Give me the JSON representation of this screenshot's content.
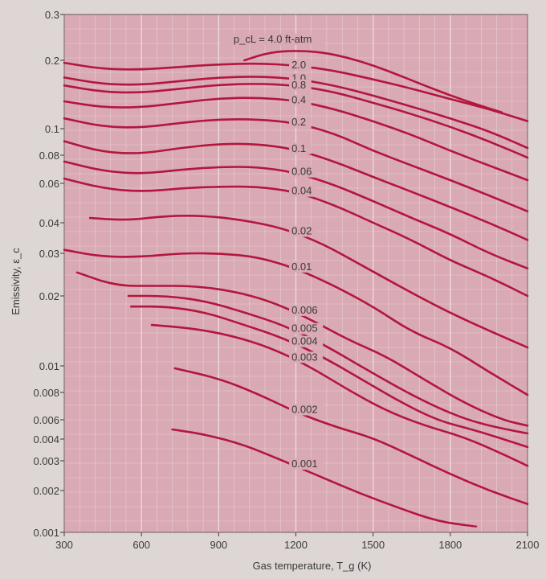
{
  "chart_data": {
    "type": "line",
    "xlabel": "Gas temperature, T_g (K)",
    "ylabel": "Emissivity, ε_c",
    "x_ticks": [
      "300",
      "600",
      "900",
      "1200",
      "1500",
      "1800",
      "2100"
    ],
    "y_ticks": [
      "0.001",
      "0.002",
      "0.003",
      "0.004",
      "0.006",
      "0.008",
      "0.01",
      "0.02",
      "0.03",
      "0.04",
      "0.06",
      "0.08",
      "0.1",
      "0.2",
      "0.3"
    ],
    "xlim": [
      300,
      2100
    ],
    "ylim": [
      0.001,
      0.3
    ],
    "y_scale": "custom (non-uniform, as printed ticks)",
    "grid": true,
    "colors": {
      "plot_bg": "#d9a9b4",
      "curve": "#b3163f",
      "grid": "#efe0e4",
      "text": "#3a3a3a"
    },
    "series": [
      {
        "name": "p_cL = 4.0 ft-atm",
        "x": [
          1000,
          1100,
          1200,
          1300,
          1400,
          1500,
          1600,
          1700,
          1800,
          1900,
          2000
        ],
        "y": [
          0.2,
          0.215,
          0.218,
          0.215,
          0.205,
          0.19,
          0.172,
          0.155,
          0.14,
          0.128,
          0.118
        ]
      },
      {
        "name": "2.0",
        "x": [
          300,
          450,
          600,
          750,
          900,
          1050,
          1200,
          1350,
          1500,
          1650,
          1800,
          1950,
          2100
        ],
        "y": [
          0.195,
          0.183,
          0.182,
          0.187,
          0.192,
          0.194,
          0.19,
          0.18,
          0.165,
          0.15,
          0.135,
          0.122,
          0.108
        ]
      },
      {
        "name": "1.0",
        "x": [
          300,
          450,
          600,
          750,
          900,
          1050,
          1200,
          1350,
          1500,
          1650,
          1800,
          1950,
          2100
        ],
        "y": [
          0.168,
          0.157,
          0.156,
          0.162,
          0.168,
          0.17,
          0.166,
          0.155,
          0.14,
          0.125,
          0.111,
          0.098,
          0.085
        ]
      },
      {
        "name": "0.8",
        "x": [
          300,
          450,
          600,
          750,
          900,
          1050,
          1200,
          1350,
          1500,
          1650,
          1800,
          1950,
          2100
        ],
        "y": [
          0.155,
          0.145,
          0.144,
          0.15,
          0.156,
          0.158,
          0.155,
          0.145,
          0.13,
          0.116,
          0.102,
          0.09,
          0.078
        ]
      },
      {
        "name": "0.4",
        "x": [
          300,
          450,
          600,
          750,
          900,
          1050,
          1200,
          1350,
          1500,
          1650,
          1800,
          1950,
          2100
        ],
        "y": [
          0.132,
          0.124,
          0.124,
          0.13,
          0.136,
          0.137,
          0.133,
          0.122,
          0.108,
          0.095,
          0.083,
          0.072,
          0.062
        ]
      },
      {
        "name": "0.2",
        "x": [
          300,
          450,
          600,
          750,
          900,
          1050,
          1200,
          1350,
          1500,
          1650,
          1800,
          1950,
          2100
        ],
        "y": [
          0.111,
          0.102,
          0.101,
          0.106,
          0.11,
          0.11,
          0.106,
          0.096,
          0.083,
          0.072,
          0.062,
          0.053,
          0.045
        ]
      },
      {
        "name": "0.1",
        "x": [
          300,
          450,
          600,
          750,
          900,
          1050,
          1200,
          1350,
          1500,
          1650,
          1800,
          1950,
          2100
        ],
        "y": [
          0.09,
          0.082,
          0.081,
          0.085,
          0.088,
          0.088,
          0.084,
          0.075,
          0.064,
          0.055,
          0.047,
          0.04,
          0.034
        ]
      },
      {
        "name": "0.06",
        "x": [
          300,
          450,
          600,
          750,
          900,
          1050,
          1200,
          1350,
          1500,
          1650,
          1800,
          1950,
          2100
        ],
        "y": [
          0.075,
          0.068,
          0.066,
          0.069,
          0.071,
          0.071,
          0.067,
          0.059,
          0.05,
          0.042,
          0.036,
          0.03,
          0.026
        ]
      },
      {
        "name": "0.04",
        "x": [
          300,
          450,
          600,
          750,
          900,
          1050,
          1200,
          1350,
          1500,
          1650,
          1800,
          1950,
          2100
        ],
        "y": [
          0.063,
          0.057,
          0.055,
          0.057,
          0.058,
          0.058,
          0.055,
          0.048,
          0.04,
          0.034,
          0.028,
          0.024,
          0.02
        ]
      },
      {
        "name": "0.02",
        "x": [
          400,
          550,
          700,
          850,
          1000,
          1150,
          1300,
          1450,
          1600,
          1750,
          1900,
          2100
        ],
        "y": [
          0.042,
          0.041,
          0.043,
          0.043,
          0.041,
          0.038,
          0.033,
          0.027,
          0.022,
          0.018,
          0.015,
          0.012
        ]
      },
      {
        "name": "0.01",
        "x": [
          300,
          450,
          600,
          750,
          900,
          1050,
          1200,
          1350,
          1500,
          1650,
          1800,
          1950,
          2100
        ],
        "y": [
          0.031,
          0.029,
          0.029,
          0.03,
          0.03,
          0.029,
          0.026,
          0.022,
          0.018,
          0.014,
          0.012,
          0.0095,
          0.0078
        ]
      },
      {
        "name": "0.006",
        "x": [
          350,
          500,
          650,
          800,
          950,
          1100,
          1250,
          1400,
          1550,
          1700,
          1850,
          2000,
          2100
        ],
        "y": [
          0.025,
          0.022,
          0.022,
          0.022,
          0.021,
          0.019,
          0.016,
          0.013,
          0.011,
          0.0089,
          0.0072,
          0.006,
          0.0053
        ]
      },
      {
        "name": "0.005",
        "x": [
          550,
          700,
          850,
          1000,
          1150,
          1300,
          1450,
          1600,
          1750,
          1900,
          2100
        ],
        "y": [
          0.02,
          0.02,
          0.019,
          0.017,
          0.015,
          0.0125,
          0.01,
          0.0083,
          0.0068,
          0.0056,
          0.0045
        ]
      },
      {
        "name": "0.004",
        "x": [
          560,
          700,
          850,
          1000,
          1150,
          1300,
          1450,
          1600,
          1750,
          1900,
          2100
        ],
        "y": [
          0.018,
          0.018,
          0.017,
          0.015,
          0.0132,
          0.011,
          0.009,
          0.0073,
          0.0059,
          0.0048,
          0.0036
        ]
      },
      {
        "name": "0.003",
        "x": [
          640,
          800,
          950,
          1100,
          1250,
          1400,
          1550,
          1700,
          1850,
          2000,
          2100
        ],
        "y": [
          0.015,
          0.0145,
          0.0135,
          0.012,
          0.01,
          0.0082,
          0.0066,
          0.0053,
          0.0042,
          0.0033,
          0.0028
        ]
      },
      {
        "name": "0.002",
        "x": [
          730,
          900,
          1050,
          1200,
          1350,
          1500,
          1650,
          1800,
          1950,
          2100
        ],
        "y": [
          0.0098,
          0.009,
          0.0079,
          0.0065,
          0.0052,
          0.0041,
          0.0032,
          0.0025,
          0.002,
          0.0016
        ]
      },
      {
        "name": "0.001",
        "x": [
          720,
          850,
          1000,
          1150,
          1300,
          1450,
          1600,
          1750,
          1900
        ],
        "y": [
          0.0049,
          0.0044,
          0.0037,
          0.003,
          0.0024,
          0.0019,
          0.0015,
          0.0012,
          0.0011
        ]
      }
    ]
  }
}
